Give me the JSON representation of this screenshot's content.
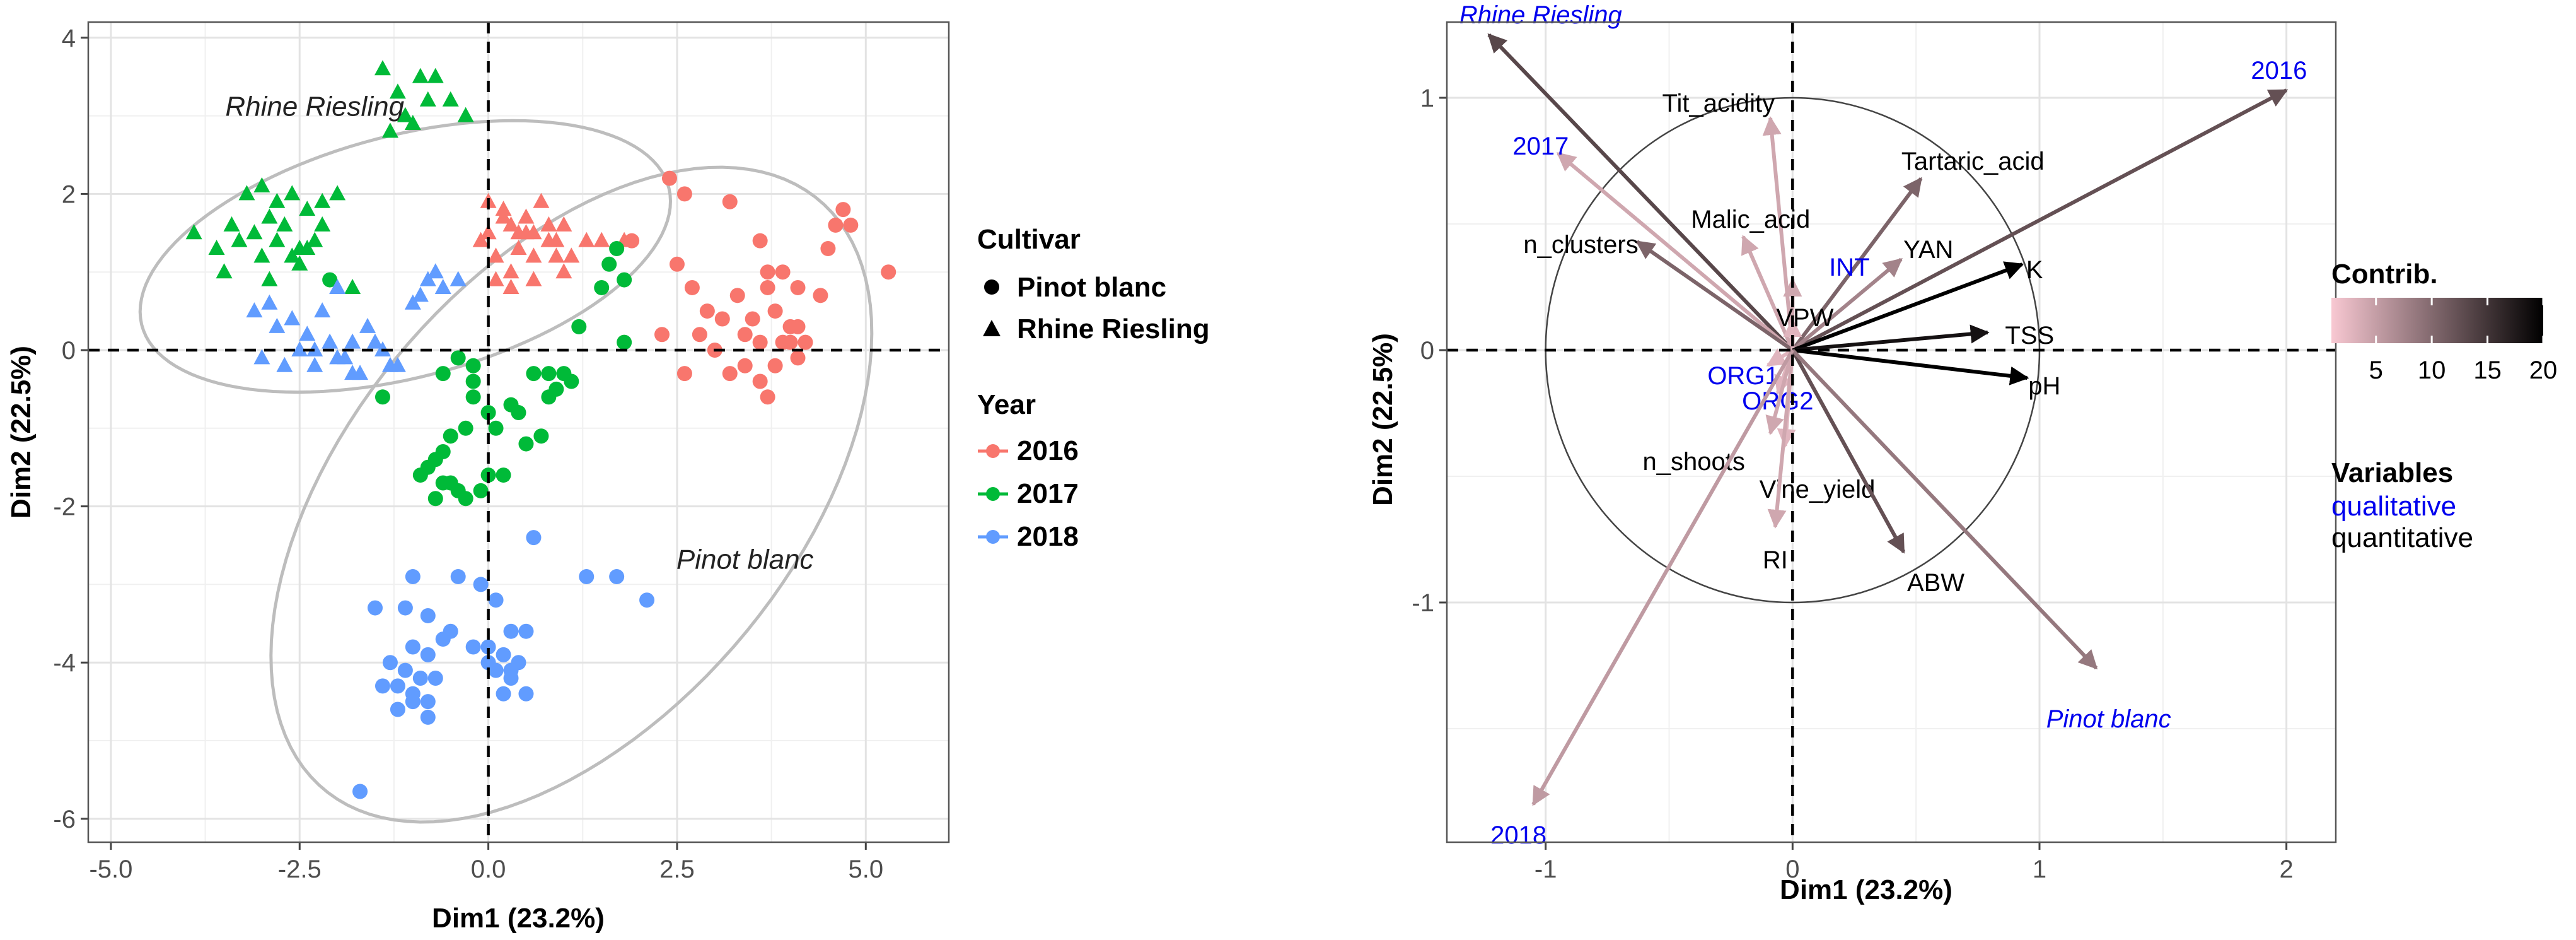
{
  "chart_data": [
    {
      "type": "scatter",
      "title": "",
      "xlabel": "Dim1 (23.2%)",
      "ylabel": "Dim2 (22.5%)",
      "xlim": [
        -5.3,
        6.1
      ],
      "ylim": [
        -6.3,
        4.2
      ],
      "xticks": [
        -5.0,
        -2.5,
        0.0,
        2.5,
        5.0
      ],
      "xtick_labels": [
        "-5.0",
        "-2.5",
        "0.0",
        "2.5",
        "5.0"
      ],
      "yticks": [
        -6,
        -4,
        -2,
        0,
        2,
        4
      ],
      "ytick_labels": [
        "-6",
        "-4",
        "-2",
        "0",
        "2",
        "4"
      ],
      "grid": true,
      "colors": {
        "2016": "#F8766D",
        "2017": "#00BA38",
        "2018": "#619CFF"
      },
      "ellipses": [
        {
          "label": "Rhine Riesling",
          "label_at": [
            -2.3,
            3.0
          ],
          "center": [
            -1.1,
            1.2
          ],
          "rx": 3.6,
          "ry": 1.55,
          "angle_deg": 14
        },
        {
          "label": "Pinot blanc",
          "label_at": [
            3.4,
            -2.8
          ],
          "center": [
            1.1,
            -1.85
          ],
          "rx": 5.0,
          "ry": 2.9,
          "angle_deg": 48
        }
      ],
      "series": [
        {
          "name": "2016 Rhine Riesling",
          "year": "2016",
          "cultivar": "Rhine Riesling",
          "shape": "triangle",
          "x": [
            0.0,
            0.2,
            0.3,
            0.5,
            0.6,
            0.8,
            1.0,
            0.4,
            0.1,
            0.7,
            0.9,
            1.3,
            0.5,
            0.3,
            0.0,
            -0.1,
            0.2,
            0.6,
            1.1,
            0.8,
            0.4,
            1.5,
            1.8,
            0.9,
            0.1,
            0.3,
            0.6,
            1.0
          ],
          "y": [
            1.9,
            1.8,
            1.6,
            1.7,
            1.5,
            1.4,
            1.6,
            1.3,
            1.2,
            1.9,
            1.4,
            1.4,
            1.5,
            1.0,
            1.5,
            1.4,
            1.7,
            1.2,
            1.2,
            1.6,
            1.5,
            1.4,
            1.4,
            1.2,
            0.9,
            0.8,
            0.9,
            1.0
          ]
        },
        {
          "name": "2016 Pinot blanc",
          "year": "2016",
          "cultivar": "Pinot blanc",
          "shape": "circle",
          "x": [
            2.4,
            2.6,
            3.2,
            3.6,
            3.7,
            3.9,
            4.1,
            4.5,
            4.6,
            4.7,
            4.8,
            5.3,
            2.5,
            2.7,
            2.9,
            3.1,
            3.3,
            3.4,
            3.5,
            3.6,
            3.7,
            3.8,
            3.9,
            4.0,
            4.1,
            4.2,
            2.3,
            2.8,
            3.0,
            3.4,
            3.6,
            3.8,
            4.0,
            1.9,
            2.6,
            3.2,
            3.7,
            4.1,
            4.4
          ],
          "y": [
            2.2,
            2.0,
            1.9,
            1.4,
            1.0,
            1.0,
            0.8,
            1.3,
            1.6,
            1.8,
            1.6,
            1.0,
            1.1,
            0.8,
            0.5,
            0.4,
            0.7,
            0.2,
            0.4,
            0.1,
            0.8,
            0.5,
            0.1,
            0.3,
            0.3,
            0.1,
            0.2,
            0.2,
            0.0,
            -0.2,
            -0.4,
            -0.2,
            0.1,
            1.4,
            -0.3,
            -0.3,
            -0.6,
            -0.1,
            0.7
          ]
        },
        {
          "name": "2017 Rhine Riesling",
          "year": "2017",
          "cultivar": "Rhine Riesling",
          "shape": "triangle",
          "x": [
            -1.4,
            -1.2,
            -1.1,
            -0.9,
            -0.7,
            -0.5,
            -0.3,
            -1.0,
            -0.8,
            -1.3,
            -3.9,
            -3.4,
            -3.2,
            -3.0,
            -2.8,
            -2.6,
            -2.4,
            -2.2,
            -2.0,
            -3.3,
            -3.1,
            -2.9,
            -2.7,
            -2.5,
            -2.3,
            -3.6,
            -3.5,
            -3.0,
            -2.8,
            -2.6,
            -2.4,
            -2.2,
            -2.5,
            -2.9,
            -1.8
          ],
          "y": [
            3.6,
            3.3,
            3.0,
            3.5,
            3.5,
            3.2,
            3.0,
            2.9,
            3.2,
            2.8,
            1.5,
            1.6,
            2.0,
            2.1,
            1.9,
            2.0,
            1.8,
            1.9,
            2.0,
            1.4,
            1.5,
            1.7,
            1.6,
            1.3,
            1.4,
            1.3,
            1.0,
            1.2,
            1.4,
            1.2,
            1.3,
            1.6,
            1.1,
            0.9,
            0.8
          ]
        },
        {
          "name": "2017 Pinot blanc",
          "year": "2017",
          "cultivar": "Pinot blanc",
          "shape": "circle",
          "x": [
            1.7,
            1.6,
            1.8,
            1.5,
            1.2,
            0.8,
            1.0,
            1.1,
            0.9,
            0.8,
            0.4,
            0.3,
            -0.2,
            0.0,
            0.1,
            -0.3,
            -0.5,
            -0.6,
            -0.7,
            -0.8,
            -0.9,
            -0.6,
            -0.5,
            -0.4,
            -0.3,
            -0.1,
            0.2,
            0.5,
            0.7,
            -0.2,
            -0.4,
            -0.6,
            -0.7,
            0.0,
            1.8,
            -2.1,
            -1.4,
            -0.2,
            0.6
          ],
          "y": [
            1.3,
            1.1,
            0.9,
            0.8,
            0.3,
            -0.3,
            -0.3,
            -0.4,
            -0.5,
            -0.6,
            -0.8,
            -0.7,
            -0.6,
            -0.8,
            -1.0,
            -1.0,
            -1.1,
            -1.3,
            -1.4,
            -1.5,
            -1.6,
            -1.7,
            -1.7,
            -1.8,
            -1.9,
            -1.8,
            -1.6,
            -1.2,
            -1.1,
            -0.2,
            -0.1,
            -0.3,
            -1.9,
            -1.6,
            0.1,
            0.9,
            -0.6,
            -0.4,
            -0.3
          ]
        },
        {
          "name": "2018 Rhine Riesling",
          "year": "2018",
          "cultivar": "Rhine Riesling",
          "shape": "triangle",
          "x": [
            -3.1,
            -2.9,
            -2.8,
            -2.6,
            -2.4,
            -2.2,
            -2.0,
            -1.8,
            -1.6,
            -1.4,
            -1.2,
            -1.0,
            -0.8,
            -0.6,
            -2.3,
            -2.1,
            -1.9,
            -1.7,
            -1.5,
            -3.0,
            -2.7,
            -2.5,
            -2.3,
            -2.0,
            -1.8,
            -1.3,
            -0.9,
            -0.7,
            -0.4
          ],
          "y": [
            0.5,
            0.6,
            0.3,
            0.4,
            0.2,
            0.5,
            0.8,
            0.1,
            0.3,
            0.0,
            -0.2,
            0.6,
            0.9,
            0.8,
            0.0,
            0.1,
            -0.1,
            -0.3,
            0.1,
            -0.1,
            -0.2,
            0.0,
            -0.2,
            -0.1,
            -0.3,
            -0.2,
            0.7,
            1.0,
            0.9
          ]
        },
        {
          "name": "2018 Pinot blanc",
          "year": "2018",
          "cultivar": "Pinot blanc",
          "shape": "circle",
          "x": [
            -1.0,
            -0.4,
            0.6,
            1.3,
            1.7,
            2.1,
            -1.1,
            -0.8,
            -0.5,
            -0.1,
            0.1,
            0.3,
            0.5,
            -1.0,
            -0.8,
            -0.6,
            -0.2,
            0.0,
            0.2,
            0.4,
            -1.3,
            -1.1,
            -0.9,
            -0.7,
            0.1,
            0.3,
            -1.4,
            -1.2,
            -1.0,
            -0.8,
            0.2,
            0.5,
            -1.2,
            -1.0,
            -0.8,
            0.0,
            0.3,
            -1.7,
            -1.5
          ],
          "y": [
            -2.9,
            -2.9,
            -2.4,
            -2.9,
            -2.9,
            -3.2,
            -3.3,
            -3.4,
            -3.6,
            -3.0,
            -3.2,
            -3.6,
            -3.6,
            -3.8,
            -3.9,
            -3.7,
            -3.8,
            -3.8,
            -3.9,
            -4.0,
            -4.0,
            -4.1,
            -4.2,
            -4.2,
            -4.1,
            -4.2,
            -4.3,
            -4.3,
            -4.4,
            -4.5,
            -4.4,
            -4.4,
            -4.6,
            -4.5,
            -4.7,
            -4.0,
            -4.1,
            -5.65,
            -3.3
          ]
        }
      ]
    },
    {
      "type": "biplot",
      "title": "",
      "xlabel": "Dim1 (23.2%)",
      "ylabel": "Dim2 (22.5%)",
      "xlim": [
        -1.4,
        2.2
      ],
      "ylim": [
        -1.95,
        1.3
      ],
      "xticks": [
        -1,
        0,
        1,
        2
      ],
      "xtick_labels": [
        "-1",
        "0",
        "1",
        "2"
      ],
      "yticks": [
        -1,
        0,
        1
      ],
      "ytick_labels": [
        "-1",
        "0",
        "1"
      ],
      "grid": true,
      "unit_circle": true,
      "contrib_scale": {
        "title": "Contrib.",
        "min": 1,
        "max": 20,
        "ticks": [
          5,
          10,
          15,
          20
        ],
        "tick_labels": [
          "5",
          "10",
          "15",
          "20"
        ],
        "low_color": "#F8C8D2",
        "high_color": "#000000"
      },
      "variables_legend": {
        "title": "Variables",
        "qualitative_label": "qualitative",
        "quantitative_label": "quantitative",
        "qualitative_color": "#0000EE",
        "quantitative_color": "#000000"
      },
      "arrows": [
        {
          "name": "Rhine  Riesling",
          "x": -1.23,
          "y": 1.25,
          "contrib": 12,
          "kind": "qualitative",
          "label_x": -1.02,
          "label_y": 1.33,
          "anchor": "middle",
          "italic": true
        },
        {
          "name": "2016",
          "x": 2.0,
          "y": 1.03,
          "contrib": 11,
          "kind": "qualitative",
          "label_x": 1.97,
          "label_y": 1.11,
          "anchor": "middle",
          "italic": false
        },
        {
          "name": "Tit_acidity",
          "x": -0.09,
          "y": 0.92,
          "contrib": 3,
          "kind": "quantitative",
          "label_x": -0.3,
          "label_y": 0.98,
          "anchor": "middle",
          "italic": false
        },
        {
          "name": "2017",
          "x": -0.95,
          "y": 0.78,
          "contrib": 3,
          "kind": "qualitative",
          "label_x": -1.02,
          "label_y": 0.81,
          "anchor": "middle",
          "italic": false
        },
        {
          "name": "Tartaric_acid",
          "x": 0.52,
          "y": 0.68,
          "contrib": 9,
          "kind": "quantitative",
          "label_x": 0.73,
          "label_y": 0.75,
          "anchor": "middle",
          "italic": false
        },
        {
          "name": "Malic_acid",
          "x": -0.2,
          "y": 0.45,
          "contrib": 3,
          "kind": "quantitative",
          "label_x": -0.17,
          "label_y": 0.52,
          "anchor": "middle",
          "italic": false
        },
        {
          "name": "n_clusters",
          "x": -0.63,
          "y": 0.43,
          "contrib": 9,
          "kind": "quantitative",
          "label_x": -1.09,
          "label_y": 0.42,
          "anchor": "start",
          "italic": false
        },
        {
          "name": "YAN",
          "x": 0.44,
          "y": 0.36,
          "contrib": 6,
          "kind": "quantitative",
          "label_x": 0.55,
          "label_y": 0.4,
          "anchor": "middle",
          "italic": false
        },
        {
          "name": "INT",
          "x": 0.0,
          "y": 0.28,
          "contrib": 3,
          "kind": "qualitative",
          "label_x": 0.23,
          "label_y": 0.33,
          "anchor": "middle",
          "italic": false
        },
        {
          "name": "K",
          "x": 0.93,
          "y": 0.34,
          "contrib": 20,
          "kind": "quantitative",
          "label_x": 0.98,
          "label_y": 0.32,
          "anchor": "middle",
          "italic": false
        },
        {
          "name": "VPW",
          "x": 0.0,
          "y": 0.12,
          "contrib": 2,
          "kind": "quantitative",
          "label_x": 0.05,
          "label_y": 0.13,
          "anchor": "middle",
          "italic": false
        },
        {
          "name": "TSS",
          "x": 0.79,
          "y": 0.07,
          "contrib": 18,
          "kind": "quantitative",
          "label_x": 0.96,
          "label_y": 0.06,
          "anchor": "middle",
          "italic": false
        },
        {
          "name": "pH",
          "x": 0.95,
          "y": -0.11,
          "contrib": 20,
          "kind": "quantitative",
          "label_x": 1.02,
          "label_y": -0.14,
          "anchor": "middle",
          "italic": false
        },
        {
          "name": "ORG1",
          "x": -0.1,
          "y": -0.06,
          "contrib": 2,
          "kind": "qualitative",
          "label_x": -0.2,
          "label_y": -0.1,
          "anchor": "middle",
          "italic": false
        },
        {
          "name": "ORG2",
          "x": -0.06,
          "y": -0.17,
          "contrib": 2,
          "kind": "qualitative",
          "label_x": -0.06,
          "label_y": -0.2,
          "anchor": "middle",
          "italic": false
        },
        {
          "name": "n_shoots",
          "x": -0.09,
          "y": -0.33,
          "contrib": 3,
          "kind": "quantitative",
          "label_x": -0.4,
          "label_y": -0.44,
          "anchor": "middle",
          "italic": false
        },
        {
          "name": "Vine_yield",
          "x": -0.03,
          "y": -0.38,
          "contrib": 2,
          "kind": "quantitative",
          "label_x": 0.1,
          "label_y": -0.55,
          "anchor": "middle",
          "italic": false
        },
        {
          "name": "RI",
          "x": -0.07,
          "y": -0.7,
          "contrib": 3,
          "kind": "quantitative",
          "label_x": -0.07,
          "label_y": -0.83,
          "anchor": "middle",
          "italic": false
        },
        {
          "name": "ABW",
          "x": 0.45,
          "y": -0.8,
          "contrib": 11,
          "kind": "quantitative",
          "label_x": 0.58,
          "label_y": -0.92,
          "anchor": "middle",
          "italic": false
        },
        {
          "name": "Pinot  blanc",
          "x": 1.23,
          "y": -1.26,
          "contrib": 7,
          "kind": "qualitative",
          "label_x": 1.28,
          "label_y": -1.46,
          "anchor": "middle",
          "italic": true
        },
        {
          "name": "2018",
          "x": -1.05,
          "y": -1.8,
          "contrib": 4,
          "kind": "qualitative",
          "label_x": -1.11,
          "label_y": -1.92,
          "anchor": "middle",
          "italic": false
        }
      ]
    }
  ],
  "legend_left": {
    "cultivar_title": "Cultivar",
    "cultivar_items": [
      "Pinot blanc",
      "Rhine Riesling"
    ],
    "year_title": "Year",
    "year_items": [
      "2016",
      "2017",
      "2018"
    ]
  }
}
